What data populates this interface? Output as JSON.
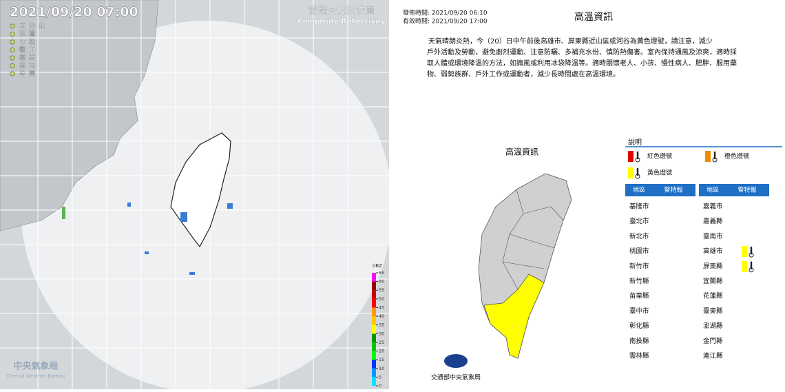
{
  "radar": {
    "timestamp": "2021/09/20  07:00",
    "title": "雷達合成回波圖",
    "subtitle": "Composite Reflectivity",
    "stations": [
      "五分山",
      "花蓮",
      "七股",
      "墾丁",
      "樹林",
      "南屯",
      "林園"
    ],
    "colorbar": {
      "unit": "dBZ",
      "ticks": [
        0,
        5,
        10,
        15,
        20,
        25,
        30,
        35,
        40,
        45,
        50,
        55,
        60,
        65
      ],
      "colors": [
        "#00e5ff",
        "#0099ff",
        "#0033ff",
        "#00ff00",
        "#00c800",
        "#009600",
        "#ffff00",
        "#ffc800",
        "#ff9600",
        "#ff0000",
        "#c80000",
        "#960000",
        "#ff00ff"
      ]
    },
    "logo": "中央氣象局",
    "logo_en": "Central Weather Bureau"
  },
  "warning": {
    "issued": "發佈時間: 2021/09/20 06:10",
    "valid": "有效時間: 2021/09/20 17:00",
    "title": "高溫資訊",
    "lines": [
      "天氣晴朗炎熱，今（20）日中午前後高雄市、屏東縣近山區或河谷為黃色燈號，請注意，減少",
      "戶外活動及勞動，避免劇烈運動、注意防曬、多補充水份、慎防熱傷害。室內保持通風及涼爽，適時採",
      "取人體或環境降溫的方法，如搧風或利用冰袋降溫等。適時關懷老人、小孩、慢性病人、肥胖、服用藥",
      "物、弱勢族群、戶外工作或運動者，減少長時間處在高溫環境。"
    ],
    "map_label": "高溫資訊",
    "legend_title": "說明",
    "legend": [
      {
        "label": "紅色燈號",
        "color": "#e60000"
      },
      {
        "label": "橙色燈號",
        "color": "#f08c00"
      },
      {
        "label": "黃色燈號",
        "color": "#ffff00"
      }
    ],
    "table_headers": [
      "地區",
      "警特報"
    ],
    "columns": [
      [
        {
          "area": "基隆市"
        },
        {
          "area": "臺北市"
        },
        {
          "area": "新北市"
        },
        {
          "area": "桃園市"
        },
        {
          "area": "新竹市"
        },
        {
          "area": "新竹縣"
        },
        {
          "area": "苗栗縣"
        },
        {
          "area": "臺中市"
        },
        {
          "area": "彰化縣"
        },
        {
          "area": "南投縣"
        },
        {
          "area": "雲林縣"
        }
      ],
      [
        {
          "area": "嘉義市"
        },
        {
          "area": "嘉義縣"
        },
        {
          "area": "臺南市"
        },
        {
          "area": "高雄市",
          "level": "#ffff00"
        },
        {
          "area": "屏東縣",
          "level": "#ffff00"
        },
        {
          "area": "宜蘭縣"
        },
        {
          "area": "花蓮縣"
        },
        {
          "area": "臺東縣"
        },
        {
          "area": "澎湖縣"
        },
        {
          "area": "金門縣"
        },
        {
          "area": "連江縣"
        }
      ]
    ],
    "footer": "交通部中央氣象局"
  }
}
